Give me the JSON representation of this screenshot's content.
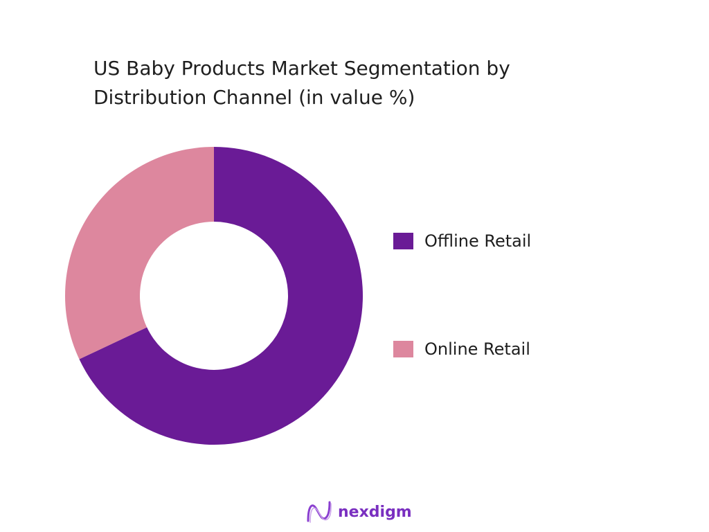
{
  "title": {
    "line1": "US Baby Products Market Segmentation by",
    "line2": "Distribution Channel  (in value %)"
  },
  "legend": [
    {
      "label": "Offline Retail",
      "color": "#6a1b96"
    },
    {
      "label": "Online Retail",
      "color": "#dd879e"
    }
  ],
  "logo": {
    "text": "nexdigm",
    "icon": "nexdigm-wave-logo-icon"
  },
  "chart_data": {
    "type": "pie",
    "subtype": "donut",
    "title": "US Baby Products Market Segmentation by Distribution Channel (in value %)",
    "categories": [
      "Offline Retail",
      "Online Retail"
    ],
    "values": [
      68,
      32
    ],
    "colors": [
      "#6a1b96",
      "#dd879e"
    ],
    "legend_position": "right",
    "data_labels": false
  }
}
